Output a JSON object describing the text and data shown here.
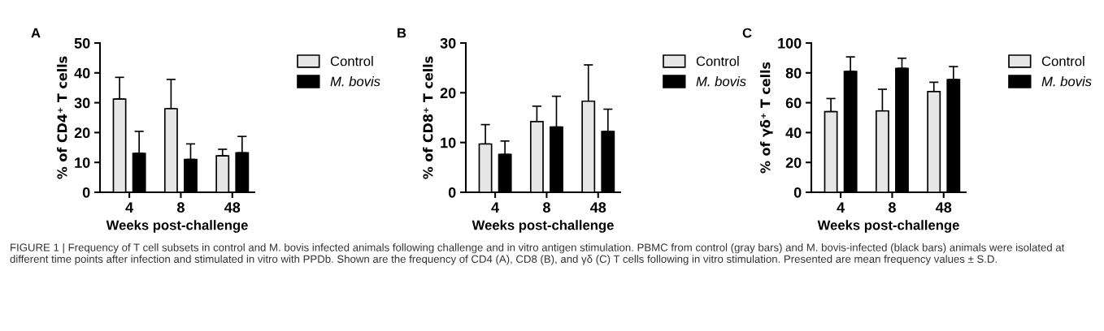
{
  "chart_data": [
    {
      "type": "bar",
      "title": "A",
      "xlabel": "Weeks post-challenge",
      "ylabel": "% of CD4⁺ T cells",
      "categories": [
        "4",
        "8",
        "48"
      ],
      "ylim": [
        0,
        50
      ],
      "yticks": [
        0,
        10,
        20,
        30,
        40,
        50
      ],
      "grid": false,
      "legend": "right",
      "series": [
        {
          "name": "Control",
          "color": "#e6e6e6",
          "values": [
            31.2,
            28,
            12.2
          ],
          "errors": [
            [
              31.2,
              38.5
            ],
            [
              28,
              37.8
            ],
            [
              12.2,
              14.4
            ]
          ]
        },
        {
          "name": "M. bovis",
          "color": "#000000",
          "values": [
            13,
            11,
            13.2
          ],
          "errors": [
            [
              13,
              20.4
            ],
            [
              11,
              16.2
            ],
            [
              13.2,
              18.7
            ]
          ]
        }
      ],
      "annotations": [
        "FIGURE 1 | Frequency of T cell subsets in control and M. bovis infected animals following challenge and in vitro antigen stimulation. PBMC from control (gray bars) and M. bovis-infected (black bars) animals were isolated at different time points after infection and stimulated in vitro with PPDb. Shown are the frequency of CD4 (A), CD8 (B), and γδ (C) T cells following in vitro stimulation. Presented are mean frequency values ± S.D."
      ]
    },
    {
      "type": "bar",
      "title": "B",
      "xlabel": "Weeks post-challenge",
      "ylabel": "% of CD8⁺ T cells",
      "categories": [
        "4",
        "8",
        "48"
      ],
      "ylim": [
        0,
        30
      ],
      "yticks": [
        0,
        10,
        20,
        30
      ],
      "grid": false,
      "legend": "right",
      "series": [
        {
          "name": "Control",
          "color": "#e6e6e6",
          "values": [
            9.7,
            14.2,
            18.3
          ],
          "errors": [
            [
              9.7,
              13.6
            ],
            [
              14.2,
              17.3
            ],
            [
              18.3,
              25.6
            ]
          ]
        },
        {
          "name": "M. bovis",
          "color": "#000000",
          "values": [
            7.6,
            13.1,
            12.2
          ],
          "errors": [
            [
              7.6,
              10.3
            ],
            [
              13.1,
              19.3
            ],
            [
              12.2,
              16.7
            ]
          ]
        }
      ]
    },
    {
      "type": "bar",
      "title": "C",
      "xlabel": "Weeks post-challenge",
      "ylabel": "% of γδ⁺ T cells",
      "categories": [
        "4",
        "8",
        "48"
      ],
      "ylim": [
        0,
        100
      ],
      "yticks": [
        0,
        20,
        40,
        60,
        80,
        100
      ],
      "grid": false,
      "legend": "right",
      "series": [
        {
          "name": "Control",
          "color": "#e6e6e6",
          "values": [
            54,
            54.5,
            67.5
          ],
          "errors": [
            [
              54,
              62.8
            ],
            [
              54.5,
              69
            ],
            [
              67.5,
              73.7
            ]
          ]
        },
        {
          "name": "M. bovis",
          "color": "#000000",
          "values": [
            81,
            83,
            75.5
          ],
          "errors": [
            [
              81,
              90.7
            ],
            [
              83,
              89.8
            ],
            [
              75.5,
              84.2
            ]
          ]
        }
      ]
    }
  ]
}
